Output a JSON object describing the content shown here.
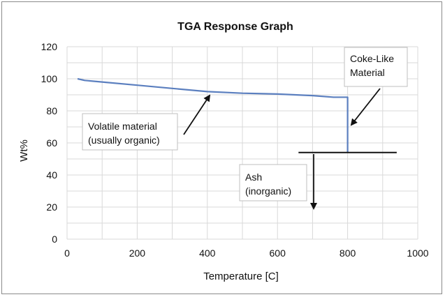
{
  "chart_data": {
    "type": "line",
    "title": "TGA Response Graph",
    "xlabel": "Temperature [C]",
    "ylabel": "Wt%",
    "xlim": [
      0,
      1000
    ],
    "ylim": [
      0,
      120
    ],
    "x_ticks": [
      "0",
      "200",
      "400",
      "600",
      "800",
      "1000"
    ],
    "y_ticks": [
      "0",
      "20",
      "40",
      "60",
      "80",
      "100",
      "120"
    ],
    "grid": true,
    "series": [
      {
        "color": "#5b7fbf",
        "points": [
          [
            30,
            100
          ],
          [
            50,
            99
          ],
          [
            100,
            98
          ],
          [
            200,
            96
          ],
          [
            300,
            94
          ],
          [
            400,
            92
          ],
          [
            500,
            91
          ],
          [
            600,
            90.5
          ],
          [
            700,
            89.5
          ],
          [
            760,
            88.5
          ],
          [
            800,
            88.5
          ],
          [
            800,
            54
          ]
        ]
      }
    ],
    "ash_line": {
      "x_start": 660,
      "x_end": 940,
      "y": 54,
      "color": "#111111"
    },
    "annotations": [
      {
        "id": "volatile",
        "lines": [
          "Volatile material",
          "(usually organic)"
        ]
      },
      {
        "id": "coke",
        "lines": [
          "Coke-Like",
          "Material"
        ]
      },
      {
        "id": "ash",
        "lines": [
          "Ash",
          "(inorganic)"
        ]
      }
    ]
  }
}
